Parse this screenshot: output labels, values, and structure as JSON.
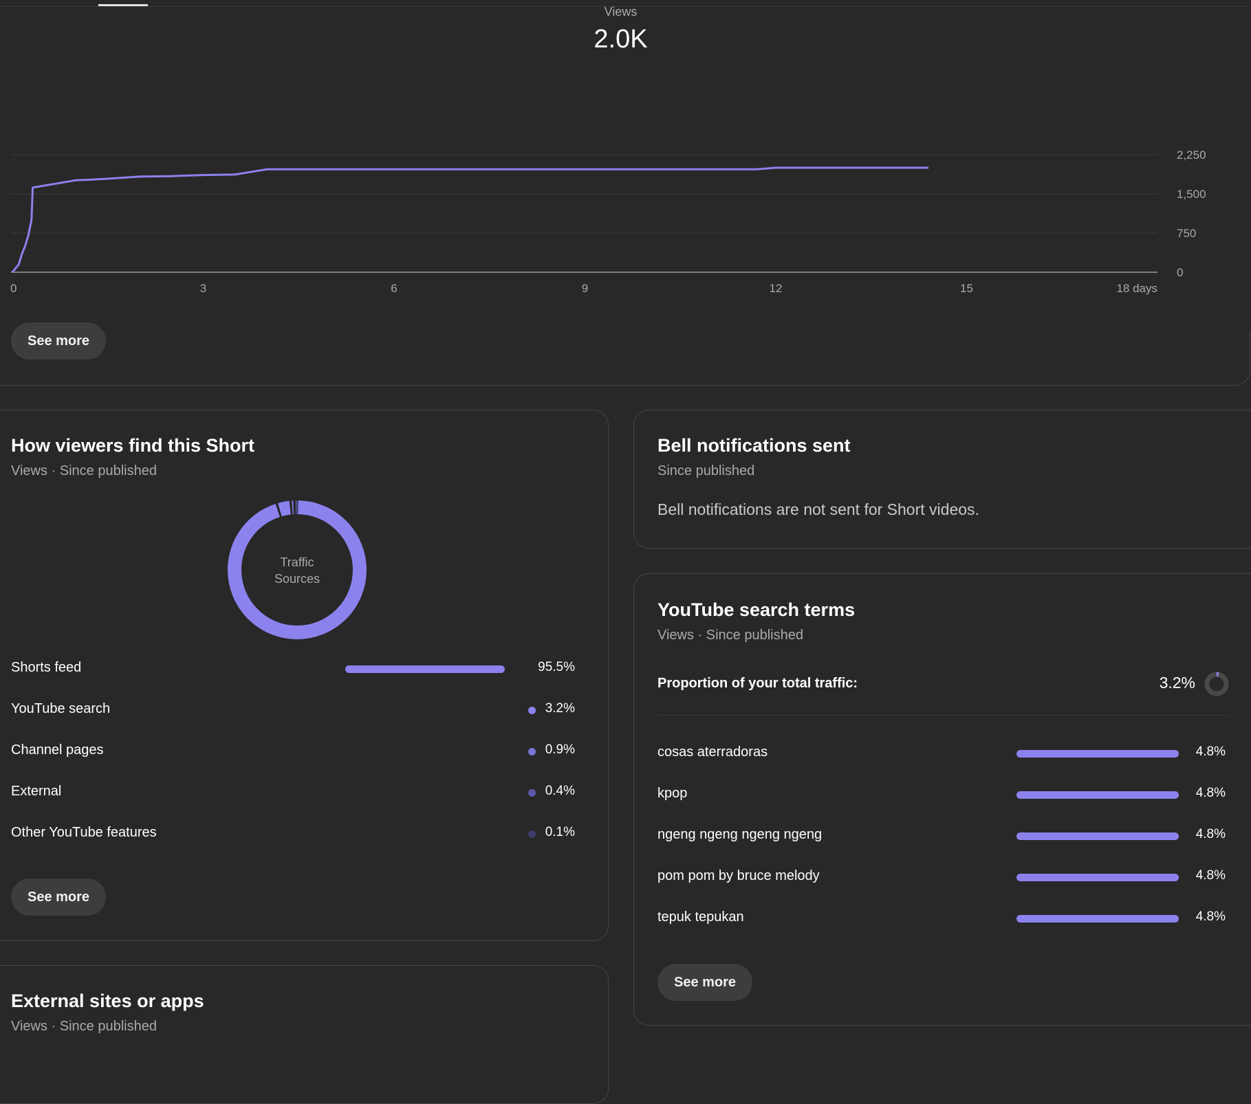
{
  "summary": {
    "metric_label": "Views",
    "metric_value": "2.0K"
  },
  "chart_data": {
    "type": "line",
    "xlabel": "",
    "ylabel": "",
    "xlim": [
      0,
      18
    ],
    "ylim": [
      0,
      2250
    ],
    "x_ticks": [
      "0",
      "3",
      "6",
      "9",
      "12",
      "15",
      "18 days"
    ],
    "y_ticks": [
      "2,250",
      "1,500",
      "750",
      "0"
    ],
    "grid": true,
    "color": "#8c82ee",
    "series": [
      {
        "x": [
          0,
          0.1,
          0.15,
          0.2,
          0.25,
          0.3,
          0.32,
          1,
          1.2,
          1.5,
          2,
          2.5,
          3,
          3.5,
          3.8,
          4,
          6,
          9,
          11.7,
          12,
          14.4
        ],
        "values": [
          0,
          150,
          350,
          500,
          700,
          1000,
          1620,
          1760,
          1770,
          1790,
          1830,
          1840,
          1860,
          1870,
          1930,
          1970,
          1970,
          1970,
          1970,
          2000,
          2000
        ]
      }
    ]
  },
  "top_panel": {
    "see_more": "See more"
  },
  "traffic": {
    "title": "How viewers find this Short",
    "subtitle": "Views · Since published",
    "donut_label_line1": "Traffic",
    "donut_label_line2": "Sources",
    "sources": [
      {
        "name": "Shorts feed",
        "pct": "95.5%",
        "share": 0.955,
        "color": "#8c82ee"
      },
      {
        "name": "YouTube search",
        "pct": "3.2%",
        "share": 0.032,
        "color": "#8c82ee"
      },
      {
        "name": "Channel pages",
        "pct": "0.9%",
        "share": 0.009,
        "color": "#7a72d6"
      },
      {
        "name": "External",
        "pct": "0.4%",
        "share": 0.004,
        "color": "#5f58a8"
      },
      {
        "name": "Other YouTube features",
        "pct": "0.1%",
        "share": 0.001,
        "color": "#403c6e"
      }
    ],
    "see_more": "See more"
  },
  "bell": {
    "title": "Bell notifications sent",
    "subtitle": "Since published",
    "message": "Bell notifications are not sent for Short videos."
  },
  "search_terms": {
    "title": "YouTube search terms",
    "subtitle": "Views · Since published",
    "proportion_label": "Proportion of your total traffic:",
    "proportion_value": "3.2%",
    "proportion_share": 0.032,
    "terms": [
      {
        "term": "cosas aterradoras",
        "pct": "4.8%"
      },
      {
        "term": "kpop",
        "pct": "4.8%"
      },
      {
        "term": "ngeng ngeng ngeng ngeng",
        "pct": "4.8%"
      },
      {
        "term": "pom pom by bruce melody",
        "pct": "4.8%"
      },
      {
        "term": "tepuk tepukan",
        "pct": "4.8%"
      }
    ],
    "see_more": "See more"
  },
  "external": {
    "title": "External sites or apps",
    "subtitle": "Views · Since published"
  },
  "colors": {
    "accent": "#8c82ee",
    "background": "#282828",
    "button": "#3d3d3d"
  }
}
